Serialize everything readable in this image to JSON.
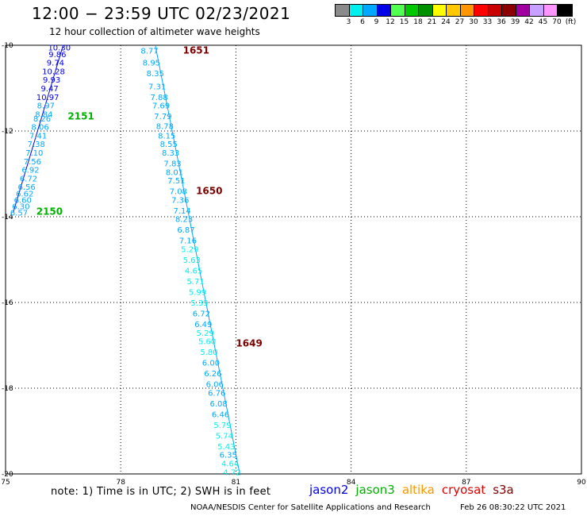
{
  "title": "12:00 − 23:59 UTC 02/23/2021",
  "subtitle": "12 hour collection of altimeter wave heights",
  "colorbar": {
    "unit": "(ft)",
    "colors": [
      "#8a8a8a",
      "#00f0f0",
      "#00a8ff",
      "#0000e8",
      "#50ff50",
      "#00c800",
      "#009000",
      "#ffff00",
      "#ffc800",
      "#ff9600",
      "#ff0000",
      "#c80000",
      "#8c0000",
      "#a000a0",
      "#c8a0ff",
      "#ff96ff",
      "#000000"
    ],
    "labels": [
      "3",
      "6",
      "9",
      "12",
      "15",
      "18",
      "21",
      "24",
      "27",
      "30",
      "33",
      "36",
      "39",
      "42",
      "45",
      "70"
    ]
  },
  "map": {
    "lon_range": [
      75,
      90
    ],
    "lat_range": [
      -20,
      -10
    ],
    "x_ticks": [
      "75",
      "78",
      "81",
      "84",
      "87",
      "90"
    ],
    "y_ticks": [
      "-10",
      "-12",
      "-14",
      "-16",
      "-18",
      "-20"
    ],
    "passes": [
      {
        "satellite": "jason3",
        "color": "#00b000",
        "time_labels": [
          {
            "text": "2151",
            "lon": 76.62,
            "lat": -11.66
          },
          {
            "text": "2150",
            "lon": 75.8,
            "lat": -13.88
          }
        ],
        "track": [
          [
            76.5,
            -10.0
          ],
          [
            75.2,
            -13.9
          ]
        ],
        "points": [
          {
            "text": "10.30",
            "lon": 76.4,
            "lat": -10.05,
            "color": "#0000e8"
          },
          {
            "text": "9.86",
            "lon": 76.35,
            "lat": -10.2,
            "color": "#0000e8"
          },
          {
            "text": "9.74",
            "lon": 76.3,
            "lat": -10.4,
            "color": "#0000e8"
          },
          {
            "text": "10.28",
            "lon": 76.25,
            "lat": -10.6,
            "color": "#0000e8"
          },
          {
            "text": "9.93",
            "lon": 76.2,
            "lat": -10.8,
            "color": "#0000e8"
          },
          {
            "text": "9.47",
            "lon": 76.15,
            "lat": -11.0,
            "color": "#0000e8"
          },
          {
            "text": "10.97",
            "lon": 76.1,
            "lat": -11.2,
            "color": "#0000e8"
          },
          {
            "text": "8.97",
            "lon": 76.05,
            "lat": -11.4,
            "color": "#00a8ff"
          },
          {
            "text": "8.84",
            "lon": 76.0,
            "lat": -11.6,
            "color": "#00a8ff"
          },
          {
            "text": "8.26",
            "lon": 75.95,
            "lat": -11.7,
            "color": "#00a8ff"
          },
          {
            "text": "8.06",
            "lon": 75.9,
            "lat": -11.9,
            "color": "#00a8ff"
          },
          {
            "text": "7.41",
            "lon": 75.85,
            "lat": -12.1,
            "color": "#00a8ff"
          },
          {
            "text": "7.38",
            "lon": 75.8,
            "lat": -12.3,
            "color": "#00a8ff"
          },
          {
            "text": "7.10",
            "lon": 75.75,
            "lat": -12.5,
            "color": "#00a8ff"
          },
          {
            "text": "7.56",
            "lon": 75.7,
            "lat": -12.7,
            "color": "#00a8ff"
          },
          {
            "text": "6.92",
            "lon": 75.65,
            "lat": -12.9,
            "color": "#00a8ff"
          },
          {
            "text": "6.72",
            "lon": 75.6,
            "lat": -13.1,
            "color": "#00a8ff"
          },
          {
            "text": "6.56",
            "lon": 75.55,
            "lat": -13.3,
            "color": "#00a8ff"
          },
          {
            "text": "6.62",
            "lon": 75.5,
            "lat": -13.45,
            "color": "#00a8ff"
          },
          {
            "text": "6.60",
            "lon": 75.45,
            "lat": -13.6,
            "color": "#00a8ff"
          },
          {
            "text": "6.30",
            "lon": 75.4,
            "lat": -13.75,
            "color": "#00a8ff"
          },
          {
            "text": "6.57",
            "lon": 75.35,
            "lat": -13.9,
            "color": "#00a8ff"
          }
        ]
      },
      {
        "satellite": "s3a",
        "color": "#800000",
        "time_labels": [
          {
            "text": "1651",
            "lon": 79.62,
            "lat": -10.12
          },
          {
            "text": "1650",
            "lon": 79.96,
            "lat": -13.4
          },
          {
            "text": "1649",
            "lon": 81.0,
            "lat": -16.95
          }
        ],
        "track": [
          [
            78.9,
            -10.0
          ],
          [
            81.1,
            -20.0
          ]
        ],
        "points": [
          {
            "text": "8.77",
            "lon": 78.75,
            "lat": -10.12,
            "color": "#00a8ff"
          },
          {
            "text": "8.95",
            "lon": 78.8,
            "lat": -10.4,
            "color": "#00a8ff"
          },
          {
            "text": "8.35",
            "lon": 78.9,
            "lat": -10.65,
            "color": "#00a8ff"
          },
          {
            "text": "7.31",
            "lon": 78.95,
            "lat": -10.95,
            "color": "#00a8ff"
          },
          {
            "text": "7.88",
            "lon": 79.0,
            "lat": -11.2,
            "color": "#00a8ff"
          },
          {
            "text": "7.69",
            "lon": 79.05,
            "lat": -11.4,
            "color": "#00a8ff"
          },
          {
            "text": "7.79",
            "lon": 79.1,
            "lat": -11.65,
            "color": "#00a8ff"
          },
          {
            "text": "8.78",
            "lon": 79.15,
            "lat": -11.88,
            "color": "#00a8ff"
          },
          {
            "text": "8.15",
            "lon": 79.2,
            "lat": -12.1,
            "color": "#00a8ff"
          },
          {
            "text": "8.55",
            "lon": 79.25,
            "lat": -12.3,
            "color": "#00a8ff"
          },
          {
            "text": "8.33",
            "lon": 79.3,
            "lat": -12.5,
            "color": "#00a8ff"
          },
          {
            "text": "7.83",
            "lon": 79.35,
            "lat": -12.75,
            "color": "#00a8ff"
          },
          {
            "text": "8.01",
            "lon": 79.4,
            "lat": -12.95,
            "color": "#00a8ff"
          },
          {
            "text": "7.51",
            "lon": 79.45,
            "lat": -13.15,
            "color": "#00a8ff"
          },
          {
            "text": "7.08",
            "lon": 79.5,
            "lat": -13.4,
            "color": "#00a8ff"
          },
          {
            "text": "7.36",
            "lon": 79.55,
            "lat": -13.6,
            "color": "#00a8ff"
          },
          {
            "text": "7.14",
            "lon": 79.6,
            "lat": -13.85,
            "color": "#00a8ff"
          },
          {
            "text": "8.23",
            "lon": 79.65,
            "lat": -14.05,
            "color": "#00a8ff"
          },
          {
            "text": "6.87",
            "lon": 79.7,
            "lat": -14.3,
            "color": "#00a8ff"
          },
          {
            "text": "7.16",
            "lon": 79.75,
            "lat": -14.55,
            "color": "#00a8ff"
          },
          {
            "text": "5.29",
            "lon": 79.8,
            "lat": -14.75,
            "color": "#00f0f0"
          },
          {
            "text": "5.63",
            "lon": 79.85,
            "lat": -15.0,
            "color": "#00f0f0"
          },
          {
            "text": "4.65",
            "lon": 79.9,
            "lat": -15.25,
            "color": "#00f0f0"
          },
          {
            "text": "5.71",
            "lon": 79.95,
            "lat": -15.5,
            "color": "#00f0f0"
          },
          {
            "text": "5.99",
            "lon": 80.0,
            "lat": -15.75,
            "color": "#00f0f0"
          },
          {
            "text": "5.39",
            "lon": 80.05,
            "lat": -16.0,
            "color": "#00f0f0"
          },
          {
            "text": "6.72",
            "lon": 80.1,
            "lat": -16.25,
            "color": "#00a8ff"
          },
          {
            "text": "6.49",
            "lon": 80.15,
            "lat": -16.5,
            "color": "#00a8ff"
          },
          {
            "text": "5.29",
            "lon": 80.2,
            "lat": -16.7,
            "color": "#00f0f0"
          },
          {
            "text": "5.60",
            "lon": 80.25,
            "lat": -16.9,
            "color": "#00f0f0"
          },
          {
            "text": "5.80",
            "lon": 80.3,
            "lat": -17.15,
            "color": "#00f0f0"
          },
          {
            "text": "6.00",
            "lon": 80.35,
            "lat": -17.4,
            "color": "#00a8ff"
          },
          {
            "text": "6.26",
            "lon": 80.4,
            "lat": -17.65,
            "color": "#00a8ff"
          },
          {
            "text": "6.06",
            "lon": 80.45,
            "lat": -17.9,
            "color": "#00a8ff"
          },
          {
            "text": "6.76",
            "lon": 80.5,
            "lat": -18.1,
            "color": "#00a8ff"
          },
          {
            "text": "6.08",
            "lon": 80.55,
            "lat": -18.35,
            "color": "#00a8ff"
          },
          {
            "text": "6.46",
            "lon": 80.6,
            "lat": -18.6,
            "color": "#00a8ff"
          },
          {
            "text": "5.79",
            "lon": 80.65,
            "lat": -18.85,
            "color": "#00f0f0"
          },
          {
            "text": "5.74",
            "lon": 80.7,
            "lat": -19.1,
            "color": "#00f0f0"
          },
          {
            "text": "5.43",
            "lon": 80.75,
            "lat": -19.35,
            "color": "#00f0f0"
          },
          {
            "text": "6.35",
            "lon": 80.8,
            "lat": -19.55,
            "color": "#00a8ff"
          },
          {
            "text": "4.64",
            "lon": 80.85,
            "lat": -19.75,
            "color": "#00f0f0"
          },
          {
            "text": "4.72",
            "lon": 80.9,
            "lat": -19.95,
            "color": "#00f0f0"
          }
        ]
      }
    ]
  },
  "note": "note:  1) Time is in UTC; 2) SWH is in feet",
  "legend": [
    {
      "name": "jason2",
      "color": "#0000e8"
    },
    {
      "name": "jason3",
      "color": "#00b000"
    },
    {
      "name": "altika",
      "color": "#ff9600"
    },
    {
      "name": "cryosat",
      "color": "#e00000"
    },
    {
      "name": "s3a",
      "color": "#800000"
    }
  ],
  "credit": "NOAA/NESDIS Center for Satellite Applications and Research",
  "timestamp": "Feb 26 08:30:22 UTC 2021"
}
